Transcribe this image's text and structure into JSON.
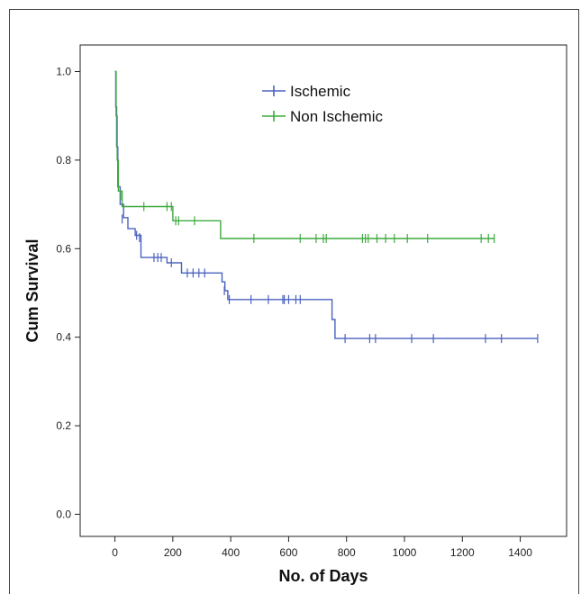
{
  "chart_data": {
    "type": "line",
    "subtype": "kaplan-meier",
    "title": "",
    "xlabel": "No. of Days",
    "ylabel": "Cum Survival",
    "xlim": [
      -120,
      1560
    ],
    "ylim": [
      -0.05,
      1.06
    ],
    "xticks": [
      0,
      200,
      400,
      600,
      800,
      1000,
      1200,
      1400
    ],
    "xtick_labels": [
      "0",
      "200",
      "400",
      "600",
      "800",
      "1000",
      "1200",
      "1400"
    ],
    "yticks": [
      0.0,
      0.2,
      0.4,
      0.6,
      0.8,
      1.0
    ],
    "ytick_labels": [
      "0.0",
      "0.2",
      "0.4",
      "0.6",
      "0.8",
      "1.0"
    ],
    "grid": false,
    "legend_position": "top-center",
    "series": [
      {
        "name": "Ischemic",
        "color": "#4a62bf",
        "steps": [
          [
            0,
            1.0
          ],
          [
            3,
            0.92
          ],
          [
            6,
            0.83
          ],
          [
            10,
            0.74
          ],
          [
            18,
            0.7
          ],
          [
            30,
            0.67
          ],
          [
            45,
            0.645
          ],
          [
            70,
            0.63
          ],
          [
            90,
            0.58
          ],
          [
            180,
            0.568
          ],
          [
            230,
            0.545
          ],
          [
            370,
            0.525
          ],
          [
            380,
            0.505
          ],
          [
            390,
            0.485
          ],
          [
            750,
            0.44
          ],
          [
            760,
            0.397
          ],
          [
            1460,
            0.397
          ]
        ],
        "censored": [
          [
            25,
            0.667
          ],
          [
            75,
            0.63
          ],
          [
            85,
            0.625
          ],
          [
            135,
            0.58
          ],
          [
            148,
            0.58
          ],
          [
            160,
            0.58
          ],
          [
            195,
            0.568
          ],
          [
            250,
            0.545
          ],
          [
            270,
            0.545
          ],
          [
            290,
            0.545
          ],
          [
            310,
            0.545
          ],
          [
            378,
            0.505
          ],
          [
            395,
            0.485
          ],
          [
            470,
            0.485
          ],
          [
            530,
            0.485
          ],
          [
            580,
            0.485
          ],
          [
            585,
            0.485
          ],
          [
            600,
            0.485
          ],
          [
            625,
            0.485
          ],
          [
            640,
            0.485
          ],
          [
            795,
            0.397
          ],
          [
            880,
            0.397
          ],
          [
            900,
            0.397
          ],
          [
            1025,
            0.397
          ],
          [
            1100,
            0.397
          ],
          [
            1280,
            0.397
          ],
          [
            1335,
            0.397
          ],
          [
            1460,
            0.397
          ]
        ]
      },
      {
        "name": "Non Ischemic",
        "color": "#3faa3f",
        "steps": [
          [
            0,
            1.0
          ],
          [
            4,
            0.9
          ],
          [
            8,
            0.8
          ],
          [
            12,
            0.73
          ],
          [
            25,
            0.695
          ],
          [
            200,
            0.663
          ],
          [
            365,
            0.623
          ],
          [
            1310,
            0.623
          ]
        ],
        "censored": [
          [
            20,
            0.72
          ],
          [
            100,
            0.695
          ],
          [
            180,
            0.695
          ],
          [
            195,
            0.695
          ],
          [
            210,
            0.663
          ],
          [
            220,
            0.663
          ],
          [
            275,
            0.663
          ],
          [
            480,
            0.623
          ],
          [
            640,
            0.623
          ],
          [
            695,
            0.623
          ],
          [
            720,
            0.623
          ],
          [
            730,
            0.623
          ],
          [
            855,
            0.623
          ],
          [
            865,
            0.623
          ],
          [
            875,
            0.623
          ],
          [
            905,
            0.623
          ],
          [
            935,
            0.623
          ],
          [
            965,
            0.623
          ],
          [
            1010,
            0.623
          ],
          [
            1080,
            0.623
          ],
          [
            1265,
            0.623
          ],
          [
            1290,
            0.623
          ],
          [
            1310,
            0.623
          ]
        ]
      }
    ]
  }
}
